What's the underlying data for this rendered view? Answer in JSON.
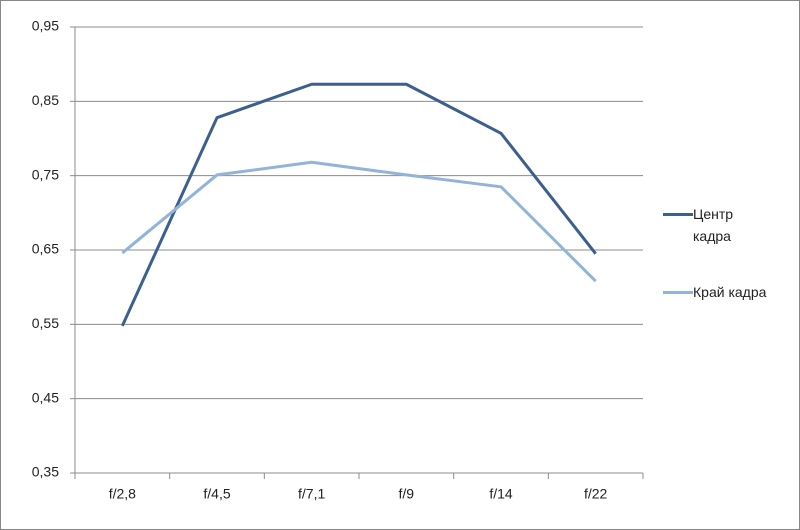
{
  "chart_data": {
    "type": "line",
    "categories": [
      "f/2,8",
      "f/4,5",
      "f/7,1",
      "f/9",
      "f/14",
      "f/22"
    ],
    "series": [
      {
        "name": "Центр кадра",
        "color": "#3b5f8e",
        "values": [
          0.548,
          0.828,
          0.873,
          0.873,
          0.807,
          0.645
        ]
      },
      {
        "name": "Край кадра",
        "color": "#94b3d8",
        "values": [
          0.646,
          0.751,
          0.768,
          0.751,
          0.735,
          0.608
        ]
      }
    ],
    "ylim": [
      0.35,
      0.95
    ],
    "yticks": [
      {
        "value": 0.35,
        "label": "0,35"
      },
      {
        "value": 0.45,
        "label": "0,45"
      },
      {
        "value": 0.55,
        "label": "0,55"
      },
      {
        "value": 0.65,
        "label": "0,65"
      },
      {
        "value": 0.75,
        "label": "0,75"
      },
      {
        "value": 0.85,
        "label": "0,85"
      },
      {
        "value": 0.95,
        "label": "0,95"
      }
    ],
    "grid": true,
    "legend": "right"
  }
}
